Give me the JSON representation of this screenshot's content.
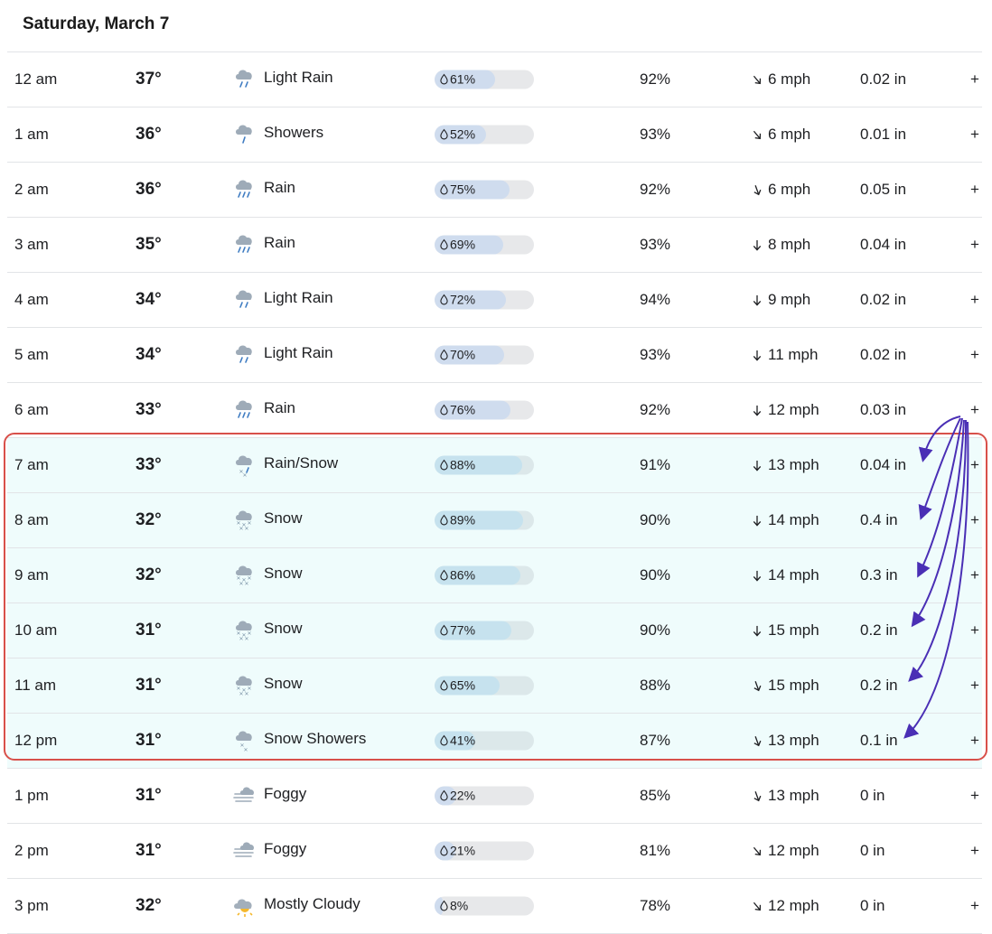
{
  "day": {
    "title": "Saturday, March 7"
  },
  "colors": {
    "highlight_bg": "#effcfc",
    "highlight_border": "#d8504a",
    "annotation_arrow": "#4a2fb5",
    "precip_fill_high": "#c6e2ee",
    "precip_fill_low": "#cfdcee",
    "bar_track": "#e7e8ea"
  },
  "hours": [
    {
      "time": "12 am",
      "temp": "37°",
      "icon": "light-rain-icon",
      "condition": "Light Rain",
      "precip": "61%",
      "precip_value": 61,
      "humidity": "92%",
      "wind_dir": "sse",
      "wind": "6 mph",
      "amount": "0.02 in",
      "expand": "+",
      "highlighted": false
    },
    {
      "time": "1 am",
      "temp": "36°",
      "icon": "showers-icon",
      "condition": "Showers",
      "precip": "52%",
      "precip_value": 52,
      "humidity": "93%",
      "wind_dir": "sse",
      "wind": "6 mph",
      "amount": "0.01 in",
      "expand": "+",
      "highlighted": false
    },
    {
      "time": "2 am",
      "temp": "36°",
      "icon": "rain-icon",
      "condition": "Rain",
      "precip": "75%",
      "precip_value": 75,
      "humidity": "92%",
      "wind_dir": "s-se",
      "wind": "6 mph",
      "amount": "0.05 in",
      "expand": "+",
      "highlighted": false
    },
    {
      "time": "3 am",
      "temp": "35°",
      "icon": "rain-icon",
      "condition": "Rain",
      "precip": "69%",
      "precip_value": 69,
      "humidity": "93%",
      "wind_dir": "s",
      "wind": "8 mph",
      "amount": "0.04 in",
      "expand": "+",
      "highlighted": false
    },
    {
      "time": "4 am",
      "temp": "34°",
      "icon": "light-rain-icon",
      "condition": "Light Rain",
      "precip": "72%",
      "precip_value": 72,
      "humidity": "94%",
      "wind_dir": "s",
      "wind": "9 mph",
      "amount": "0.02 in",
      "expand": "+",
      "highlighted": false
    },
    {
      "time": "5 am",
      "temp": "34°",
      "icon": "light-rain-icon",
      "condition": "Light Rain",
      "precip": "70%",
      "precip_value": 70,
      "humidity": "93%",
      "wind_dir": "s",
      "wind": "11 mph",
      "amount": "0.02 in",
      "expand": "+",
      "highlighted": false
    },
    {
      "time": "6 am",
      "temp": "33°",
      "icon": "rain-icon",
      "condition": "Rain",
      "precip": "76%",
      "precip_value": 76,
      "humidity": "92%",
      "wind_dir": "s",
      "wind": "12 mph",
      "amount": "0.03 in",
      "expand": "+",
      "highlighted": false
    },
    {
      "time": "7 am",
      "temp": "33°",
      "icon": "rain-snow-icon",
      "condition": "Rain/Snow",
      "precip": "88%",
      "precip_value": 88,
      "humidity": "91%",
      "wind_dir": "s",
      "wind": "13 mph",
      "amount": "0.04 in",
      "expand": "+",
      "highlighted": true
    },
    {
      "time": "8 am",
      "temp": "32°",
      "icon": "snow-icon",
      "condition": "Snow",
      "precip": "89%",
      "precip_value": 89,
      "humidity": "90%",
      "wind_dir": "s",
      "wind": "14 mph",
      "amount": "0.4 in",
      "expand": "+",
      "highlighted": true
    },
    {
      "time": "9 am",
      "temp": "32°",
      "icon": "snow-icon",
      "condition": "Snow",
      "precip": "86%",
      "precip_value": 86,
      "humidity": "90%",
      "wind_dir": "s",
      "wind": "14 mph",
      "amount": "0.3 in",
      "expand": "+",
      "highlighted": true
    },
    {
      "time": "10 am",
      "temp": "31°",
      "icon": "snow-icon",
      "condition": "Snow",
      "precip": "77%",
      "precip_value": 77,
      "humidity": "90%",
      "wind_dir": "s",
      "wind": "15 mph",
      "amount": "0.2 in",
      "expand": "+",
      "highlighted": true
    },
    {
      "time": "11 am",
      "temp": "31°",
      "icon": "snow-icon",
      "condition": "Snow",
      "precip": "65%",
      "precip_value": 65,
      "humidity": "88%",
      "wind_dir": "s-se",
      "wind": "15 mph",
      "amount": "0.2 in",
      "expand": "+",
      "highlighted": true
    },
    {
      "time": "12 pm",
      "temp": "31°",
      "icon": "snow-showers-icon",
      "condition": "Snow Showers",
      "precip": "41%",
      "precip_value": 41,
      "humidity": "87%",
      "wind_dir": "s-se",
      "wind": "13 mph",
      "amount": "0.1 in",
      "expand": "+",
      "highlighted": true
    },
    {
      "time": "1 pm",
      "temp": "31°",
      "icon": "fog-icon",
      "condition": "Foggy",
      "precip": "22%",
      "precip_value": 22,
      "humidity": "85%",
      "wind_dir": "s-se",
      "wind": "13 mph",
      "amount": "0 in",
      "expand": "+",
      "highlighted": false
    },
    {
      "time": "2 pm",
      "temp": "31°",
      "icon": "fog-icon",
      "condition": "Foggy",
      "precip": "21%",
      "precip_value": 21,
      "humidity": "81%",
      "wind_dir": "sse",
      "wind": "12 mph",
      "amount": "0 in",
      "expand": "+",
      "highlighted": false
    },
    {
      "time": "3 pm",
      "temp": "32°",
      "icon": "mostly-cloudy-icon",
      "condition": "Mostly Cloudy",
      "precip": "8%",
      "precip_value": 8,
      "humidity": "78%",
      "wind_dir": "sse",
      "wind": "12 mph",
      "amount": "0 in",
      "expand": "+",
      "highlighted": false
    }
  ]
}
